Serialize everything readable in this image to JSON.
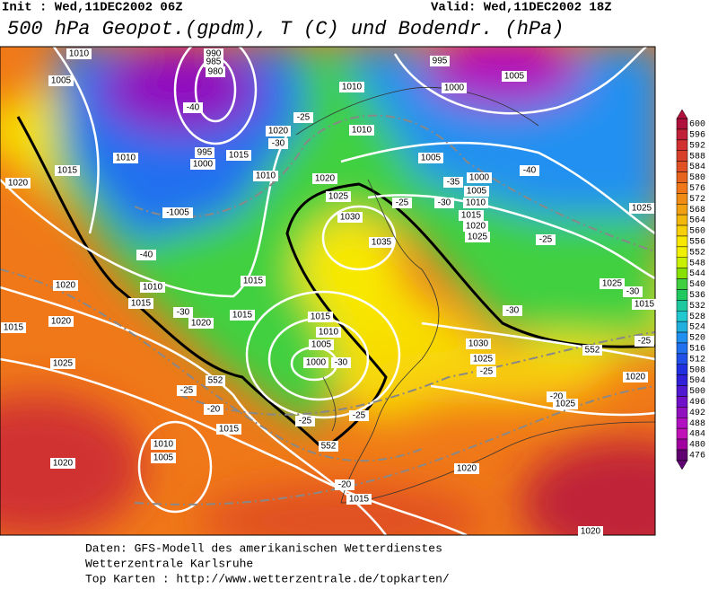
{
  "header": {
    "init": "Init : Wed,11DEC2002 06Z",
    "valid": "Valid: Wed,11DEC2002 18Z",
    "title": "500 hPa Geopot.(gpdm), T (C) und Bodendr. (hPa)"
  },
  "colorbar": {
    "labels": [
      600,
      596,
      592,
      588,
      584,
      580,
      576,
      572,
      568,
      564,
      560,
      556,
      552,
      548,
      544,
      540,
      536,
      532,
      528,
      524,
      520,
      516,
      512,
      508,
      504,
      500,
      496,
      492,
      488,
      484,
      480,
      476
    ],
    "colors": [
      "#b0103c",
      "#c02038",
      "#d03030",
      "#d8402a",
      "#e05024",
      "#e8641e",
      "#f07818",
      "#f08c14",
      "#f0a010",
      "#f4b80c",
      "#f8d008",
      "#f8e800",
      "#f0f000",
      "#c8f000",
      "#88e000",
      "#40d040",
      "#20c860",
      "#20c8a0",
      "#20c8d0",
      "#20b0e0",
      "#2090f0",
      "#2070f0",
      "#2050e8",
      "#2030e0",
      "#3020d8",
      "#5018d0",
      "#7010c8",
      "#9010c0",
      "#b010c0",
      "#c010b8",
      "#a000a0",
      "#600070"
    ]
  },
  "map_labels": [
    "1010",
    "990",
    "985",
    "980",
    "1005",
    "-40",
    "1010",
    "-25",
    "1020",
    "-30",
    "1010",
    "995",
    "1000",
    "1005",
    "1010",
    "995",
    "1000",
    "1015",
    "1015",
    "1010",
    "1020",
    "1020",
    "1025",
    "-1005",
    "1005",
    "1000",
    "-35",
    "1005",
    "1010",
    "-40",
    "-25",
    "-30",
    "1015",
    "1020",
    "1025",
    "1030",
    "1035",
    "1025",
    "-25",
    "-40",
    "1020",
    "1010",
    "1015",
    "1015",
    "-30",
    "1015",
    "1020",
    "1020",
    "1015",
    "1015",
    "1010",
    "1005",
    "1000",
    "-30",
    "1025",
    "-30",
    "1015",
    "-30",
    "1030",
    "552",
    "-25",
    "1025",
    "-25",
    "1025",
    "552",
    "-25",
    "-20",
    "1025",
    "1020",
    "-20",
    "-25",
    "-25",
    "1015",
    "552",
    "1010",
    "1005",
    "1020",
    "-20",
    "1020",
    "1015",
    "1020"
  ],
  "footer": [
    "Daten: GFS-Modell des amerikanischen Wetterdienstes",
    "Wetterzentrale Karlsruhe",
    "Top Karten :  http://www.wetterzentrale.de/topkarten/"
  ]
}
